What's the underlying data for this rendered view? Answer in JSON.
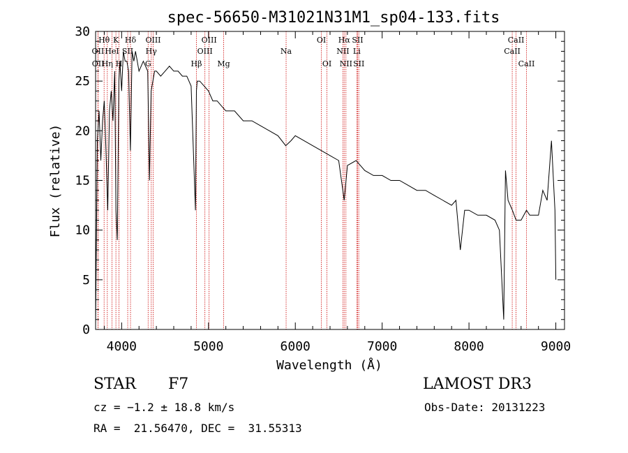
{
  "chart_data": {
    "type": "line",
    "title": "spec-56650-M31021N31M1_sp04-133.fits",
    "xlabel": "Wavelength (Å)",
    "ylabel": "Flux (relative)",
    "xlim": [
      3700,
      9100
    ],
    "ylim": [
      0,
      30
    ],
    "xticks": [
      4000,
      5000,
      6000,
      7000,
      8000,
      9000
    ],
    "yticks": [
      0,
      5,
      10,
      15,
      20,
      25,
      30
    ],
    "line_color": "#000000",
    "marker_color": "#cc0000",
    "spectrum": {
      "x": [
        3700,
        3720,
        3740,
        3760,
        3780,
        3800,
        3820,
        3840,
        3860,
        3880,
        3900,
        3920,
        3935,
        3950,
        3968,
        3980,
        4000,
        4020,
        4040,
        4060,
        4080,
        4101,
        4120,
        4140,
        4160,
        4180,
        4200,
        4250,
        4300,
        4320,
        4340,
        4360,
        4380,
        4400,
        4450,
        4500,
        4550,
        4600,
        4650,
        4700,
        4750,
        4800,
        4850,
        4861,
        4870,
        4900,
        4950,
        5000,
        5050,
        5100,
        5150,
        5200,
        5300,
        5400,
        5500,
        5600,
        5700,
        5800,
        5890,
        5950,
        6000,
        6100,
        6200,
        6300,
        6400,
        6500,
        6563,
        6600,
        6700,
        6800,
        6900,
        7000,
        7100,
        7200,
        7300,
        7400,
        7500,
        7600,
        7700,
        7800,
        7850,
        7900,
        7950,
        8000,
        8100,
        8200,
        8300,
        8350,
        8400,
        8420,
        8450,
        8500,
        8542,
        8600,
        8662,
        8700,
        8800,
        8850,
        8900,
        8950,
        8990,
        9000
      ],
      "y": [
        0.5,
        19,
        22,
        17,
        21,
        23,
        18,
        12,
        22,
        24,
        21,
        26,
        12,
        9,
        25,
        27,
        24,
        28,
        27,
        27,
        26,
        18,
        28,
        27,
        28,
        27,
        26,
        27,
        26,
        15,
        24,
        25,
        26,
        26,
        25.5,
        26,
        26.5,
        26,
        26,
        25.5,
        25.5,
        24.5,
        12,
        24,
        25,
        25,
        24.5,
        24,
        23,
        23,
        22.5,
        22,
        22,
        21,
        21,
        20.5,
        20,
        19.5,
        18.5,
        19,
        19.5,
        19,
        18.5,
        18,
        17.5,
        17,
        13,
        16.5,
        17,
        16,
        15.5,
        15.5,
        15,
        15,
        14.5,
        14,
        14,
        13.5,
        13,
        12.5,
        13,
        8,
        12,
        12,
        11.5,
        11.5,
        11,
        10,
        1,
        16,
        13,
        12,
        11,
        11,
        12,
        11.5,
        11.5,
        14,
        13,
        19,
        12,
        5
      ]
    },
    "line_markers": [
      {
        "label": "Hθ",
        "wl": 3798,
        "row": 1
      },
      {
        "label": "OII",
        "wl": 3727,
        "row": 2
      },
      {
        "label": "OII",
        "wl": 3729,
        "row": 3
      },
      {
        "label": "K",
        "wl": 3934,
        "row": 1
      },
      {
        "label": "HeI",
        "wl": 3889,
        "row": 2
      },
      {
        "label": "Hη",
        "wl": 3835,
        "row": 3
      },
      {
        "label": "Hδ",
        "wl": 4102,
        "row": 1
      },
      {
        "label": "SII",
        "wl": 4070,
        "row": 2
      },
      {
        "label": "H",
        "wl": 3970,
        "row": 3
      },
      {
        "label": "OIII",
        "wl": 4363,
        "row": 1
      },
      {
        "label": "Hγ",
        "wl": 4341,
        "row": 2
      },
      {
        "label": "G",
        "wl": 4305,
        "row": 3
      },
      {
        "label": "Hβ",
        "wl": 4861,
        "row": 3
      },
      {
        "label": "OIII",
        "wl": 5007,
        "row": 1
      },
      {
        "label": "OIII",
        "wl": 4959,
        "row": 2
      },
      {
        "label": "Mg",
        "wl": 5175,
        "row": 3
      },
      {
        "label": "Na",
        "wl": 5894,
        "row": 2
      },
      {
        "label": "OI",
        "wl": 6300,
        "row": 1
      },
      {
        "label": "OI",
        "wl": 6364,
        "row": 3
      },
      {
        "label": "Hα",
        "wl": 6563,
        "row": 1
      },
      {
        "label": "NII",
        "wl": 6548,
        "row": 2
      },
      {
        "label": "NII",
        "wl": 6583,
        "row": 3
      },
      {
        "label": "SII",
        "wl": 6717,
        "row": 1
      },
      {
        "label": "Li",
        "wl": 6708,
        "row": 2
      },
      {
        "label": "SII",
        "wl": 6731,
        "row": 3
      },
      {
        "label": "CaII",
        "wl": 8542,
        "row": 1
      },
      {
        "label": "CaII",
        "wl": 8498,
        "row": 2
      },
      {
        "label": "CaII",
        "wl": 8662,
        "row": 3
      }
    ]
  },
  "info": {
    "object_type": "STAR",
    "subclass": "F7",
    "survey": "LAMOST DR3",
    "cz": "cz = −1.2 ± 18.8 km/s",
    "obs_date": "Obs-Date: 20131223",
    "coords": "RA =  21.56470, DEC =  31.55313"
  }
}
